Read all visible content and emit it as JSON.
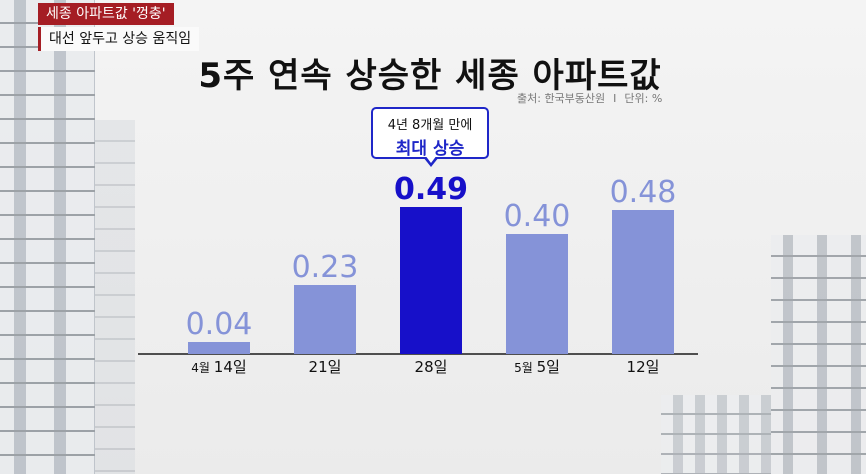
{
  "banner": {
    "top": "세종 아파트값 '껑충'",
    "bottom": "대선 앞두고 상승 움직임"
  },
  "source": {
    "origin": "출처: 한국부동산원",
    "separator": "I",
    "unit": "단위: %"
  },
  "callout": {
    "line1": "4년 8개월 만에",
    "line2": "최대 상승"
  },
  "colors": {
    "bar": "#8593d8",
    "highlight": "#1710c9",
    "accent": "#a51d24"
  },
  "chart_data": {
    "type": "bar",
    "title": "5주 연속 상승한 세종 아파트값",
    "categories": [
      {
        "small": "4월",
        "big": "14일"
      },
      {
        "small": "",
        "big": "21일"
      },
      {
        "small": "",
        "big": "28일"
      },
      {
        "small": "5월",
        "big": "5일"
      },
      {
        "small": "",
        "big": "12일"
      }
    ],
    "values": [
      0.04,
      0.23,
      0.49,
      0.4,
      0.48
    ],
    "value_labels": [
      "0.04",
      "0.23",
      "0.49",
      "0.40",
      "0.48"
    ],
    "highlight_index": 2,
    "ylim": [
      0,
      0.5
    ],
    "grid": false
  }
}
